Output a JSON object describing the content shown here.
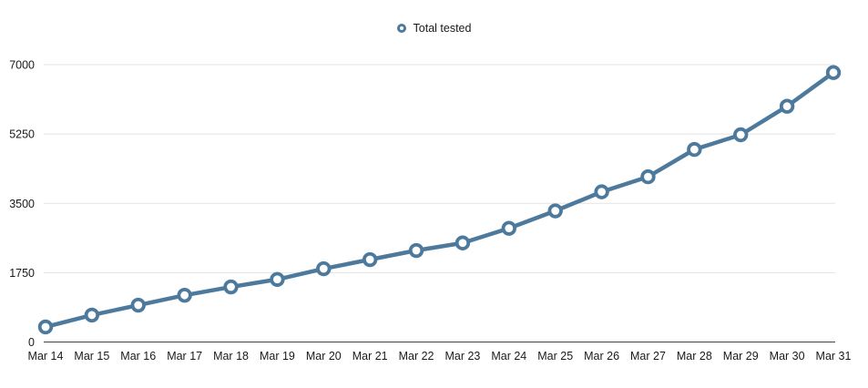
{
  "legend": {
    "label": "Total tested"
  },
  "chart_data": {
    "type": "line",
    "title": "",
    "xlabel": "",
    "ylabel": "",
    "categories": [
      "Mar 14",
      "Mar 15",
      "Mar 16",
      "Mar 17",
      "Mar 18",
      "Mar 19",
      "Mar 20",
      "Mar 21",
      "Mar 22",
      "Mar 23",
      "Mar 24",
      "Mar 25",
      "Mar 26",
      "Mar 27",
      "Mar 28",
      "Mar 29",
      "Mar 30",
      "Mar 31"
    ],
    "series": [
      {
        "name": "Total tested",
        "values": [
          380,
          680,
          930,
          1180,
          1390,
          1580,
          1850,
          2080,
          2310,
          2500,
          2870,
          3310,
          3790,
          4170,
          4860,
          5230,
          5950,
          6800
        ]
      }
    ],
    "y_ticks": [
      0,
      1750,
      3500,
      5250,
      7000
    ],
    "ylim": [
      0,
      7000
    ],
    "grid": "horizontal",
    "legend_position": "top-center",
    "marker_style": "hollow-circle",
    "colors": {
      "line": "#4d7a9c",
      "marker_fill": "#ffffff",
      "grid": "#e3e3e3",
      "axis": "#444444",
      "text": "#1a1a1a"
    }
  }
}
